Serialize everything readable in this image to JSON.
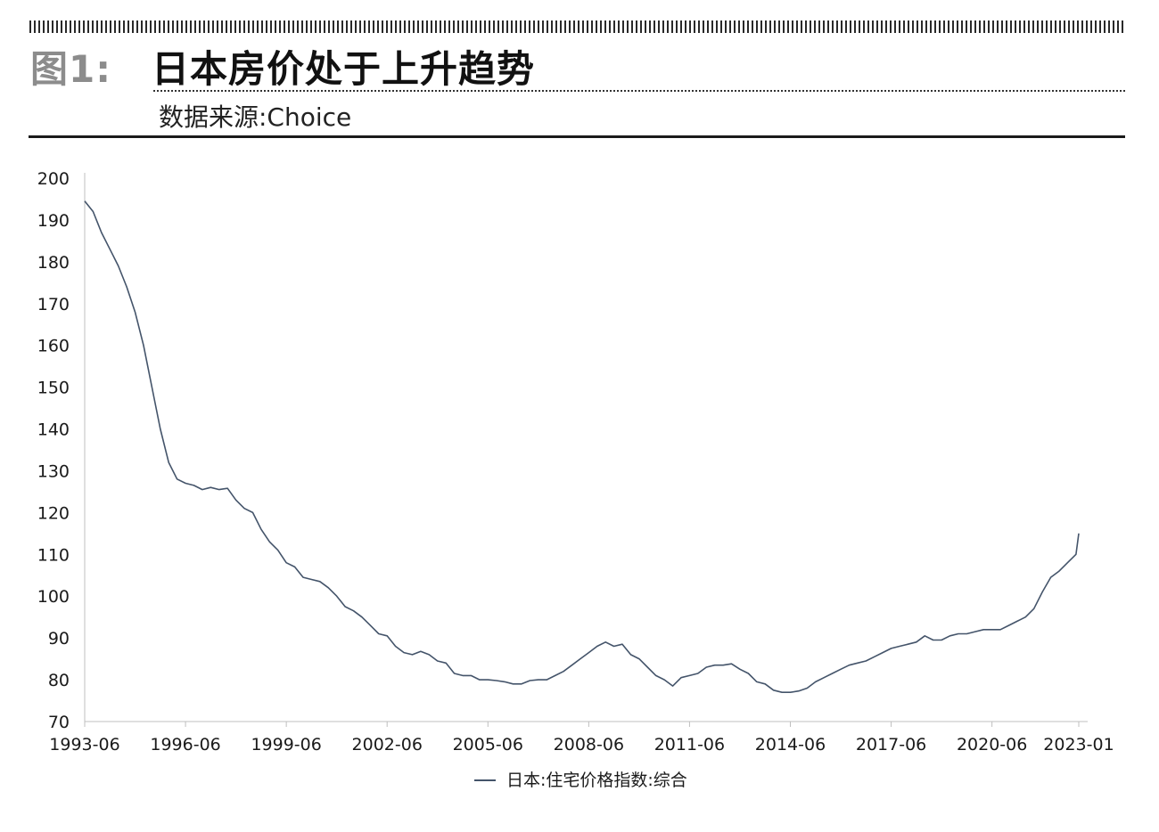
{
  "header": {
    "figure_label": "图1:",
    "title": "日本房价处于上升趋势",
    "source": "数据来源:Choice"
  },
  "chart_data": {
    "type": "line",
    "title": "",
    "xlabel": "",
    "ylabel": "",
    "x_tick_labels": [
      "1993-06",
      "1996-06",
      "1999-06",
      "2002-06",
      "2005-06",
      "2008-06",
      "2011-06",
      "2014-06",
      "2017-06",
      "2020-06",
      "2023-01"
    ],
    "y_tick_labels": [
      "70",
      "80",
      "90",
      "100",
      "110",
      "120",
      "130",
      "140",
      "150",
      "160",
      "170",
      "180",
      "190",
      "200"
    ],
    "ylim": [
      70,
      200
    ],
    "xlim": [
      "1993-06",
      "2023-01"
    ],
    "grid": false,
    "legend_position": "bottom-center",
    "series": [
      {
        "name": "日本:住宅价格指数:综合",
        "color": "#44546a",
        "points": [
          [
            "1993-06",
            194.5
          ],
          [
            "1993-09",
            192
          ],
          [
            "1993-12",
            187
          ],
          [
            "1994-03",
            183
          ],
          [
            "1994-06",
            179
          ],
          [
            "1994-09",
            174
          ],
          [
            "1994-12",
            168
          ],
          [
            "1995-03",
            160
          ],
          [
            "1995-06",
            150
          ],
          [
            "1995-09",
            140
          ],
          [
            "1995-12",
            132
          ],
          [
            "1996-03",
            128
          ],
          [
            "1996-06",
            127
          ],
          [
            "1996-09",
            126.5
          ],
          [
            "1996-12",
            125.5
          ],
          [
            "1997-03",
            126
          ],
          [
            "1997-06",
            125.5
          ],
          [
            "1997-09",
            125.8
          ],
          [
            "1997-12",
            123
          ],
          [
            "1998-03",
            121
          ],
          [
            "1998-06",
            120
          ],
          [
            "1998-09",
            116
          ],
          [
            "1998-12",
            113
          ],
          [
            "1999-03",
            111
          ],
          [
            "1999-06",
            108
          ],
          [
            "1999-09",
            107
          ],
          [
            "1999-12",
            104.5
          ],
          [
            "2000-03",
            104
          ],
          [
            "2000-06",
            103.5
          ],
          [
            "2000-09",
            102
          ],
          [
            "2000-12",
            100
          ],
          [
            "2001-03",
            97.5
          ],
          [
            "2001-06",
            96.5
          ],
          [
            "2001-09",
            95
          ],
          [
            "2001-12",
            93
          ],
          [
            "2002-03",
            91
          ],
          [
            "2002-06",
            90.5
          ],
          [
            "2002-09",
            88
          ],
          [
            "2002-12",
            86.5
          ],
          [
            "2003-03",
            86
          ],
          [
            "2003-06",
            86.8
          ],
          [
            "2003-09",
            86
          ],
          [
            "2003-12",
            84.5
          ],
          [
            "2004-03",
            84
          ],
          [
            "2004-06",
            81.5
          ],
          [
            "2004-09",
            81
          ],
          [
            "2004-12",
            81
          ],
          [
            "2005-03",
            80
          ],
          [
            "2005-06",
            80
          ],
          [
            "2005-09",
            79.8
          ],
          [
            "2005-12",
            79.5
          ],
          [
            "2006-03",
            79
          ],
          [
            "2006-06",
            79
          ],
          [
            "2006-09",
            79.8
          ],
          [
            "2006-12",
            80
          ],
          [
            "2007-03",
            80
          ],
          [
            "2007-06",
            81
          ],
          [
            "2007-09",
            82
          ],
          [
            "2007-12",
            83.5
          ],
          [
            "2008-03",
            85
          ],
          [
            "2008-06",
            86.5
          ],
          [
            "2008-09",
            88
          ],
          [
            "2008-12",
            89
          ],
          [
            "2009-03",
            88
          ],
          [
            "2009-06",
            88.5
          ],
          [
            "2009-09",
            86
          ],
          [
            "2009-12",
            85
          ],
          [
            "2010-03",
            83
          ],
          [
            "2010-06",
            81
          ],
          [
            "2010-09",
            80
          ],
          [
            "2010-12",
            78.5
          ],
          [
            "2011-03",
            80.5
          ],
          [
            "2011-06",
            81
          ],
          [
            "2011-09",
            81.5
          ],
          [
            "2011-12",
            83
          ],
          [
            "2012-03",
            83.5
          ],
          [
            "2012-06",
            83.5
          ],
          [
            "2012-09",
            83.8
          ],
          [
            "2012-12",
            82.5
          ],
          [
            "2013-03",
            81.5
          ],
          [
            "2013-06",
            79.5
          ],
          [
            "2013-09",
            79
          ],
          [
            "2013-12",
            77.5
          ],
          [
            "2014-03",
            77
          ],
          [
            "2014-06",
            77
          ],
          [
            "2014-09",
            77.3
          ],
          [
            "2014-12",
            78
          ],
          [
            "2015-03",
            79.5
          ],
          [
            "2015-06",
            80.5
          ],
          [
            "2015-09",
            81.5
          ],
          [
            "2015-12",
            82.5
          ],
          [
            "2016-03",
            83.5
          ],
          [
            "2016-06",
            84
          ],
          [
            "2016-09",
            84.5
          ],
          [
            "2016-12",
            85.5
          ],
          [
            "2017-03",
            86.5
          ],
          [
            "2017-06",
            87.5
          ],
          [
            "2017-09",
            88
          ],
          [
            "2017-12",
            88.5
          ],
          [
            "2018-03",
            89
          ],
          [
            "2018-06",
            90.5
          ],
          [
            "2018-09",
            89.5
          ],
          [
            "2018-12",
            89.5
          ],
          [
            "2019-03",
            90.5
          ],
          [
            "2019-06",
            91
          ],
          [
            "2019-09",
            91
          ],
          [
            "2019-12",
            91.5
          ],
          [
            "2020-03",
            92
          ],
          [
            "2020-06",
            92
          ],
          [
            "2020-09",
            92
          ],
          [
            "2020-12",
            93
          ],
          [
            "2021-03",
            94
          ],
          [
            "2021-06",
            95
          ],
          [
            "2021-09",
            97
          ],
          [
            "2021-12",
            101
          ],
          [
            "2022-03",
            104.5
          ],
          [
            "2022-06",
            106
          ],
          [
            "2022-09",
            108
          ],
          [
            "2022-12",
            110
          ],
          [
            "2023-01",
            115
          ]
        ]
      }
    ]
  }
}
